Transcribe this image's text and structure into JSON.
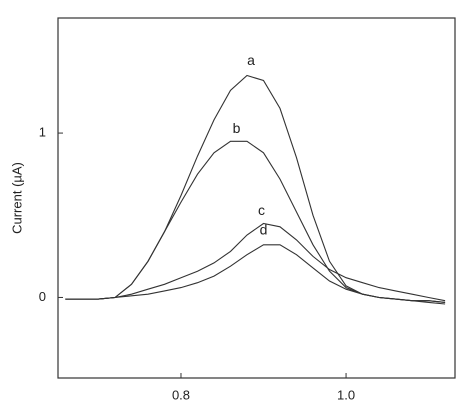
{
  "chart_data": {
    "type": "line",
    "ylabel": "Current (µA)",
    "x": [
      0.66,
      0.68,
      0.7,
      0.72,
      0.74,
      0.76,
      0.78,
      0.8,
      0.82,
      0.84,
      0.86,
      0.88,
      0.9,
      0.92,
      0.94,
      0.96,
      0.98,
      1.0,
      1.02,
      1.04,
      1.06,
      1.08,
      1.1,
      1.12
    ],
    "series": [
      {
        "name": "a",
        "color": "#333333",
        "values": [
          -0.01,
          -0.01,
          -0.01,
          0.0,
          0.08,
          0.22,
          0.4,
          0.62,
          0.86,
          1.08,
          1.26,
          1.35,
          1.32,
          1.15,
          0.85,
          0.5,
          0.22,
          0.07,
          0.02,
          0.0,
          -0.01,
          -0.02,
          -0.02,
          -0.03
        ]
      },
      {
        "name": "b",
        "color": "#333333",
        "values": [
          -0.01,
          -0.01,
          -0.01,
          0.0,
          0.08,
          0.22,
          0.4,
          0.58,
          0.75,
          0.88,
          0.95,
          0.95,
          0.88,
          0.72,
          0.52,
          0.32,
          0.16,
          0.06,
          0.02,
          0.0,
          -0.01,
          -0.02,
          -0.02,
          -0.03
        ]
      },
      {
        "name": "c",
        "color": "#333333",
        "values": [
          -0.01,
          -0.01,
          -0.01,
          0.0,
          0.02,
          0.05,
          0.08,
          0.12,
          0.16,
          0.21,
          0.28,
          0.38,
          0.45,
          0.43,
          0.35,
          0.25,
          0.17,
          0.12,
          0.09,
          0.06,
          0.04,
          0.02,
          0.0,
          -0.02
        ]
      },
      {
        "name": "d",
        "color": "#333333",
        "values": [
          -0.01,
          -0.01,
          -0.01,
          0.0,
          0.01,
          0.02,
          0.04,
          0.06,
          0.09,
          0.13,
          0.19,
          0.26,
          0.32,
          0.32,
          0.26,
          0.18,
          0.1,
          0.05,
          0.02,
          0.0,
          -0.01,
          -0.02,
          -0.03,
          -0.04
        ]
      }
    ],
    "xlim": [
      0.651,
      1.132
    ],
    "xticks": [
      0.8,
      {
        "value": 1,
        "label": "1.0"
      }
    ],
    "ylim": [
      -0.49,
      1.7
    ],
    "yticks": [
      0,
      1
    ]
  }
}
